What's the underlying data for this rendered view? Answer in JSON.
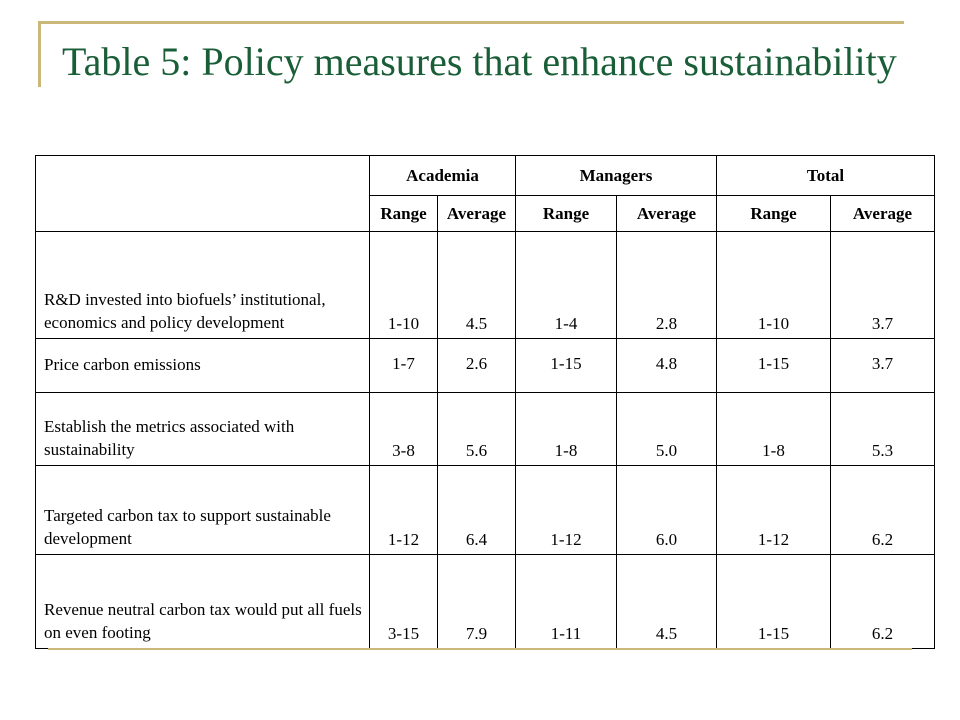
{
  "slide": {
    "title": "Table 5: Policy measures that enhance sustainability",
    "accent_color": "#c9b87a",
    "title_color": "#1a5e38"
  },
  "table": {
    "group_headers": [
      "Academia",
      "Managers",
      "Total"
    ],
    "sub_headers": [
      "Range",
      "Average",
      "Range",
      "Average",
      "Range",
      "Average"
    ],
    "rows": [
      {
        "measure": "R&D invested into biofuels’ institutional, economics and policy development",
        "values": [
          "1-10",
          "4.5",
          "1-4",
          "2.8",
          "1-10",
          "3.7"
        ]
      },
      {
        "measure": "Price carbon emissions",
        "values": [
          "1-7",
          "2.6",
          "1-15",
          "4.8",
          "1-15",
          "3.7"
        ]
      },
      {
        "measure": "Establish the metrics associated with sustainability",
        "values": [
          "3-8",
          "5.6",
          "1-8",
          "5.0",
          "1-8",
          "5.3"
        ]
      },
      {
        "measure": "Targeted carbon tax to support sustainable development",
        "values": [
          "1-12",
          "6.4",
          "1-12",
          "6.0",
          "1-12",
          "6.2"
        ]
      },
      {
        "measure": "Revenue neutral carbon tax would put all fuels on even footing",
        "values": [
          "3-15",
          "7.9",
          "1-11",
          "4.5",
          "1-15",
          "6.2"
        ]
      }
    ]
  }
}
